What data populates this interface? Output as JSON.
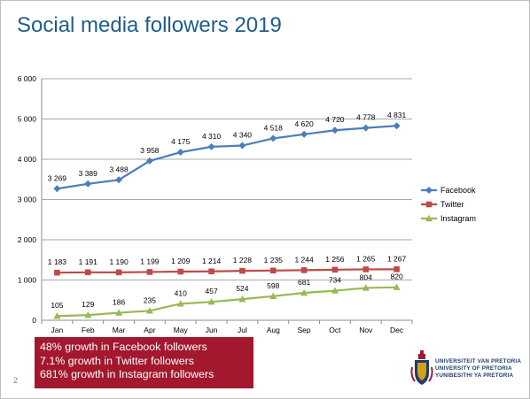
{
  "title": "Social media followers 2019",
  "page_number": "2",
  "callout": {
    "lines": [
      "48% growth in Facebook followers",
      "7.1% growth in Twitter followers",
      "681% growth in Instagram followers"
    ],
    "background": "#a3182f"
  },
  "logo": {
    "lines": [
      "UNIVERSITEIT VAN PRETORIA",
      "UNIVERSITY OF PRETORIA",
      "YUNIBESITHI YA PRETORIA"
    ],
    "icon": "university-crest-icon"
  },
  "chart_data": {
    "type": "line",
    "title": "",
    "xlabel": "",
    "ylabel": "",
    "categories": [
      "Jan",
      "Feb",
      "Mar",
      "Apr",
      "May",
      "Jun",
      "Jul",
      "Aug",
      "Sep",
      "Oct",
      "Nov",
      "Dec"
    ],
    "ylim": [
      0,
      6000
    ],
    "yticks": [
      0,
      1000,
      2000,
      3000,
      4000,
      5000,
      6000
    ],
    "ytick_labels": [
      "0",
      "1 000",
      "2 000",
      "3 000",
      "4 000",
      "5 000",
      "6 000"
    ],
    "grid": true,
    "legend_position": "right",
    "series": [
      {
        "name": "Facebook",
        "color": "#4a7ebb",
        "marker": "diamond",
        "values": [
          3269,
          3389,
          3488,
          3958,
          4175,
          4310,
          4340,
          4518,
          4620,
          4720,
          4778,
          4831
        ],
        "labels": [
          "3 269",
          "3 389",
          "3 488",
          "3 958",
          "4 175",
          "4 310",
          "4 340",
          "4 518",
          "4 620",
          "4 720",
          "4 778",
          "4 831"
        ]
      },
      {
        "name": "Twitter",
        "color": "#be4b48",
        "marker": "square",
        "values": [
          1183,
          1191,
          1190,
          1199,
          1209,
          1214,
          1228,
          1235,
          1244,
          1256,
          1265,
          1267
        ],
        "labels": [
          "1 183",
          "1 191",
          "1 190",
          "1 199",
          "1 209",
          "1 214",
          "1 228",
          "1 235",
          "1 244",
          "1 256",
          "1 265",
          "1 267"
        ]
      },
      {
        "name": "Instagram",
        "color": "#98b954",
        "marker": "triangle",
        "values": [
          105,
          129,
          186,
          235,
          410,
          457,
          524,
          598,
          681,
          734,
          804,
          820
        ],
        "labels": [
          "105",
          "129",
          "186",
          "235",
          "410",
          "457",
          "524",
          "598",
          "681",
          "734",
          "804",
          "820"
        ]
      }
    ]
  }
}
